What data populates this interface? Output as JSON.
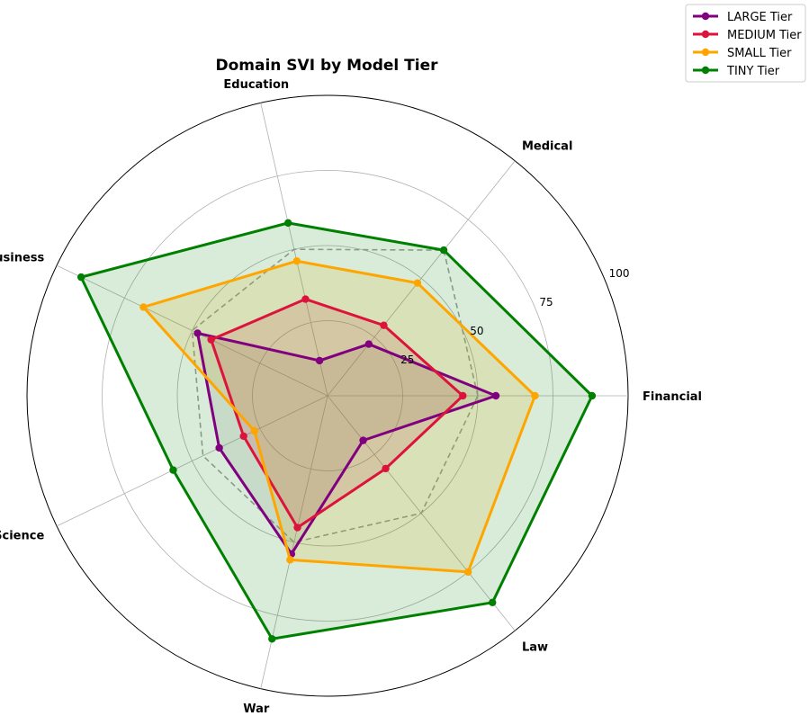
{
  "chart_data": {
    "type": "radar",
    "title": "Domain SVI by Model Tier",
    "categories": [
      "Financial",
      "Medical",
      "Education",
      "Business",
      "Science",
      "War",
      "Law"
    ],
    "rlim": [
      0,
      100
    ],
    "rticks": [
      25,
      50,
      75,
      100
    ],
    "rtick_labels": [
      "25",
      "50",
      "75",
      "100"
    ],
    "legend_position": "top-right",
    "grid": true,
    "series": [
      {
        "name": "LARGE Tier",
        "color": "#800080",
        "fill": "#808080",
        "values": [
          56,
          22,
          12,
          48,
          40,
          54,
          19
        ]
      },
      {
        "name": "MEDIUM Tier",
        "color": "#dc143c",
        "fill": "#dc143c",
        "values": [
          45,
          30,
          33,
          43,
          31,
          45,
          31
        ]
      },
      {
        "name": "SMALL Tier",
        "color": "#ffa500",
        "fill": "#ffa500",
        "values": [
          69,
          48,
          46,
          68,
          27,
          56,
          75
        ]
      },
      {
        "name": "TINY Tier",
        "color": "#008000",
        "fill": "#008000",
        "values": [
          88,
          62,
          59,
          91,
          57,
          83,
          88
        ]
      }
    ],
    "reference_line": {
      "style": "dashed",
      "color": "#a0a0a0",
      "values": [
        50,
        62,
        50,
        50,
        46,
        50,
        50
      ]
    }
  }
}
